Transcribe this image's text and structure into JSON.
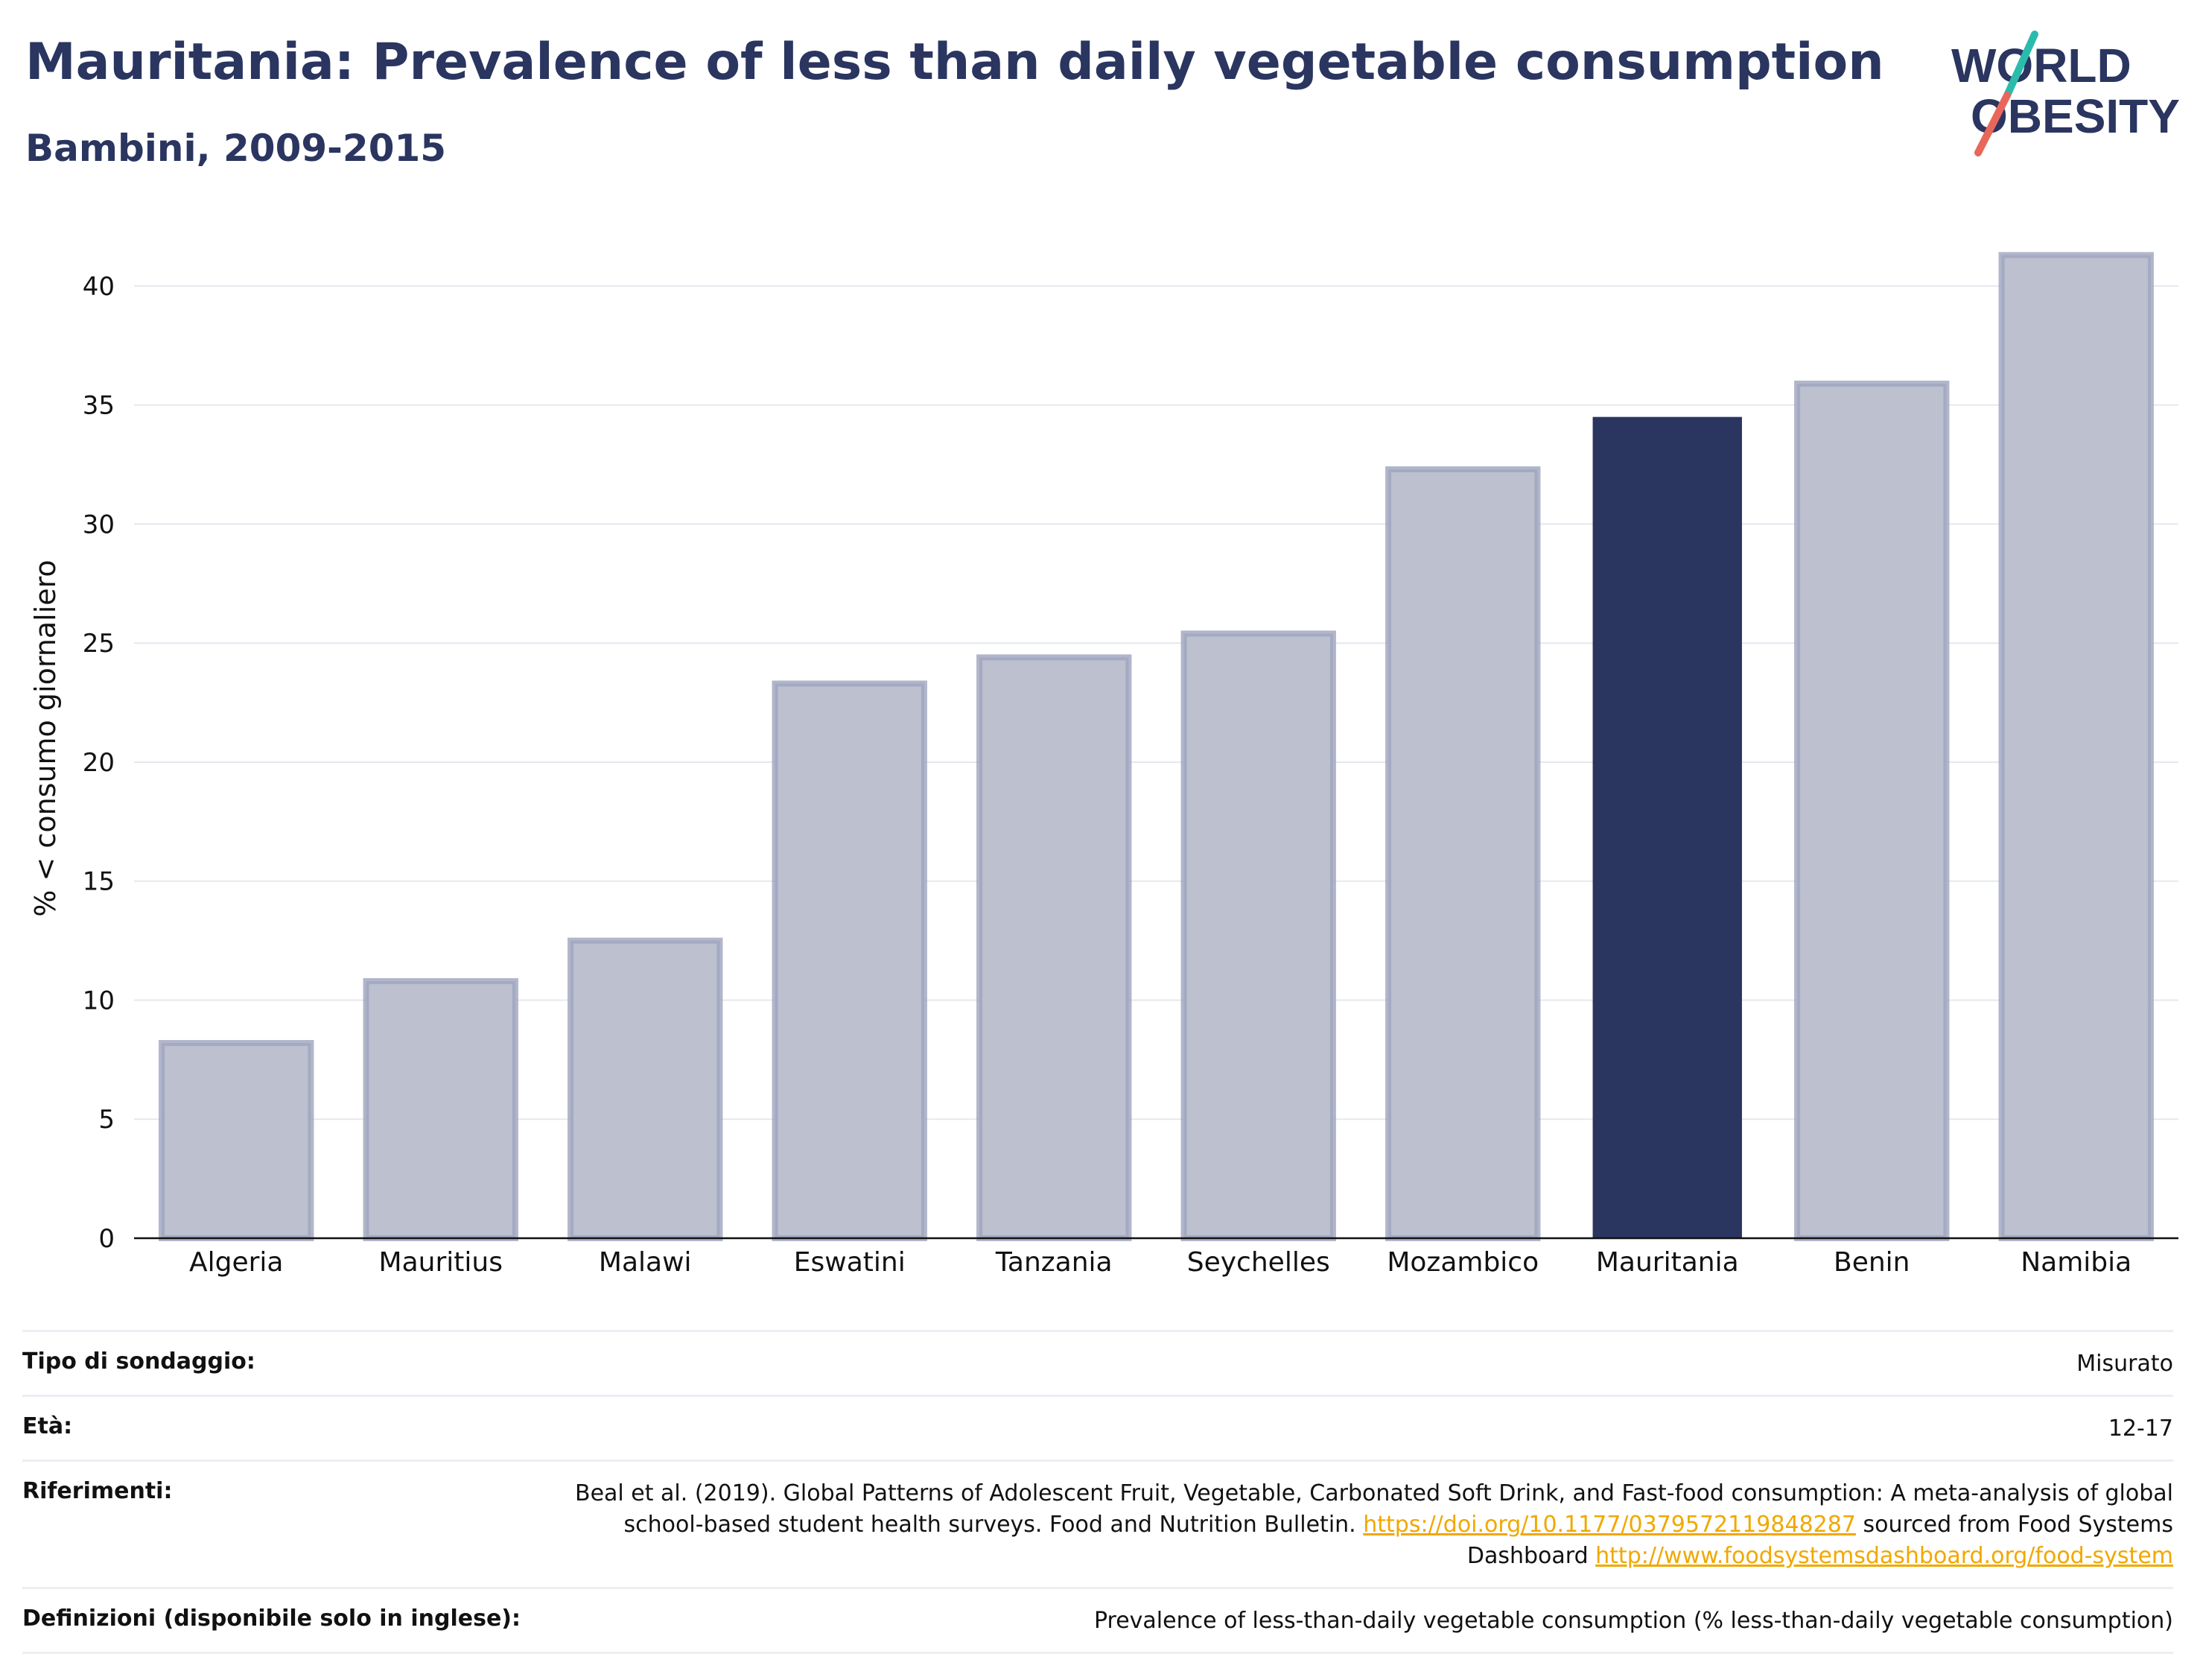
{
  "header": {
    "title": "Mauritania: Prevalence of less than daily vegetable consumption",
    "subtitle": "Bambini, 2009-2015"
  },
  "logo": {
    "line1": "WORLD",
    "line2": "OBESITY"
  },
  "colors": {
    "highlight": "#2a3560",
    "bar": "#bcc0cf",
    "bar_edge": "#9ea4bd",
    "accent_teal": "#2bbbad",
    "accent_red": "#e8675a"
  },
  "chart_data": {
    "type": "bar",
    "categories": [
      "Algeria",
      "Mauritius",
      "Malawi",
      "Eswatini",
      "Tanzania",
      "Seychelles",
      "Mozambico",
      "Mauritania",
      "Benin",
      "Namibia"
    ],
    "values": [
      8.2,
      10.8,
      12.5,
      23.3,
      24.4,
      25.4,
      32.3,
      34.5,
      35.9,
      41.3
    ],
    "highlight": "Mauritania",
    "ylabel": "% < consumo giornaliero",
    "xlabel": "",
    "ylim": [
      0,
      42
    ],
    "yticks": [
      0,
      5,
      10,
      15,
      20,
      25,
      30,
      35,
      40
    ],
    "grid": true
  },
  "info": {
    "survey_label": "Tipo di sondaggio:",
    "survey_value": "Misurato",
    "age_label": "Età:",
    "age_value": "12-17",
    "ref_label": "Riferimenti:",
    "ref_text_1": "Beal et al. (2019). Global Patterns of Adolescent Fruit, Vegetable, Carbonated Soft Drink, and Fast-food consumption: A meta-analysis of global school-based student health surveys. Food and Nutrition Bulletin. ",
    "ref_link_1": "https://doi.org/10.1177/0379572119848287",
    "ref_text_2": " sourced from Food Systems Dashboard ",
    "ref_link_2": "http://www.foodsystemsdashboard.org/food-system",
    "def_label": "Definizioni (disponibile solo in inglese):",
    "def_value": "Prevalence of less-than-daily vegetable consumption (% less-than-daily vegetable consumption)"
  }
}
